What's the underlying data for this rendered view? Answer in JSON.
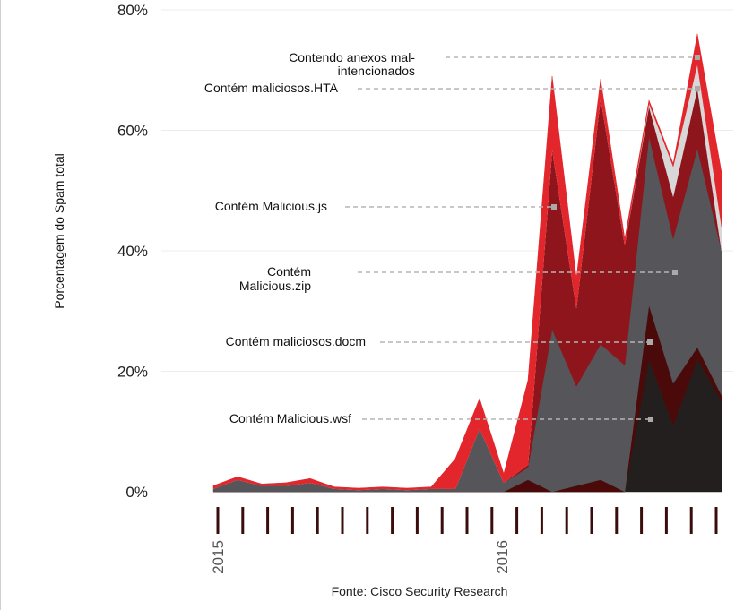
{
  "chart_data": {
    "type": "area",
    "title": "",
    "xlabel": "",
    "ylabel": "Porcentagem do Spam total",
    "ylim": [
      0,
      80
    ],
    "yticks": [
      "0%",
      "20%",
      "40%",
      "60%",
      "80%"
    ],
    "x_tick_labels": [
      "2015",
      "2016"
    ],
    "x_points": 22,
    "series": [
      {
        "name": "Contém Malicious.wsf",
        "color": "#231f1f",
        "values": [
          0,
          0,
          0,
          0,
          0,
          0,
          0,
          0,
          0,
          0,
          0,
          0,
          0,
          0,
          0,
          0,
          0,
          0,
          22,
          11,
          22,
          15
        ]
      },
      {
        "name": "Contém maliciosos.docm",
        "color": "#4a0a0a",
        "values": [
          0,
          0,
          0,
          0,
          0,
          0,
          0,
          0,
          0,
          0,
          0,
          0,
          0,
          2,
          0,
          1,
          2,
          0,
          9,
          7,
          2,
          1
        ]
      },
      {
        "name": "Contém Malicious.zip",
        "color": "#55555a",
        "values": [
          0.5,
          2,
          1,
          1,
          1.5,
          0.5,
          0.3,
          0.5,
          0.3,
          0.5,
          0.5,
          10.5,
          1.5,
          2,
          27,
          16.5,
          22.5,
          21,
          28,
          24,
          33,
          24
        ]
      },
      {
        "name": "Contém Malicious.js",
        "color": "#8e151b",
        "values": [
          0,
          0,
          0,
          0,
          0,
          0,
          0,
          0,
          0,
          0,
          0,
          0,
          0,
          0.5,
          30,
          13,
          41,
          20,
          5,
          7,
          10,
          0
        ]
      },
      {
        "name": "Contém maliciosos.HTA",
        "color": "#d8d8d8",
        "values": [
          0,
          0,
          0,
          0,
          0,
          0,
          0,
          0,
          0,
          0,
          0,
          0,
          0,
          0,
          0,
          0,
          0,
          0,
          0.5,
          5,
          4,
          4
        ]
      },
      {
        "name": "Contendo anexos mal-intencionados",
        "color": "#e2262b",
        "values": [
          0.5,
          0.5,
          0.3,
          0.5,
          0.7,
          0.3,
          0.3,
          0.3,
          0.3,
          0.3,
          5,
          5,
          1.5,
          14,
          12,
          5,
          3,
          1,
          0.5,
          0.5,
          5,
          9
        ]
      }
    ],
    "annotations": [
      {
        "lines": [
          "Contendo anexos mal-",
          "intencionados"
        ]
      },
      {
        "lines": [
          "Contém maliciosos.HTA"
        ]
      },
      {
        "lines": [
          "Contém Malicious.js"
        ]
      },
      {
        "lines": [
          "Contém",
          "Malicious.zip"
        ]
      },
      {
        "lines": [
          "Contém maliciosos.docm"
        ]
      },
      {
        "lines": [
          "Contém Malicious.wsf"
        ]
      }
    ],
    "source": "Fonte: Cisco Security Research"
  }
}
